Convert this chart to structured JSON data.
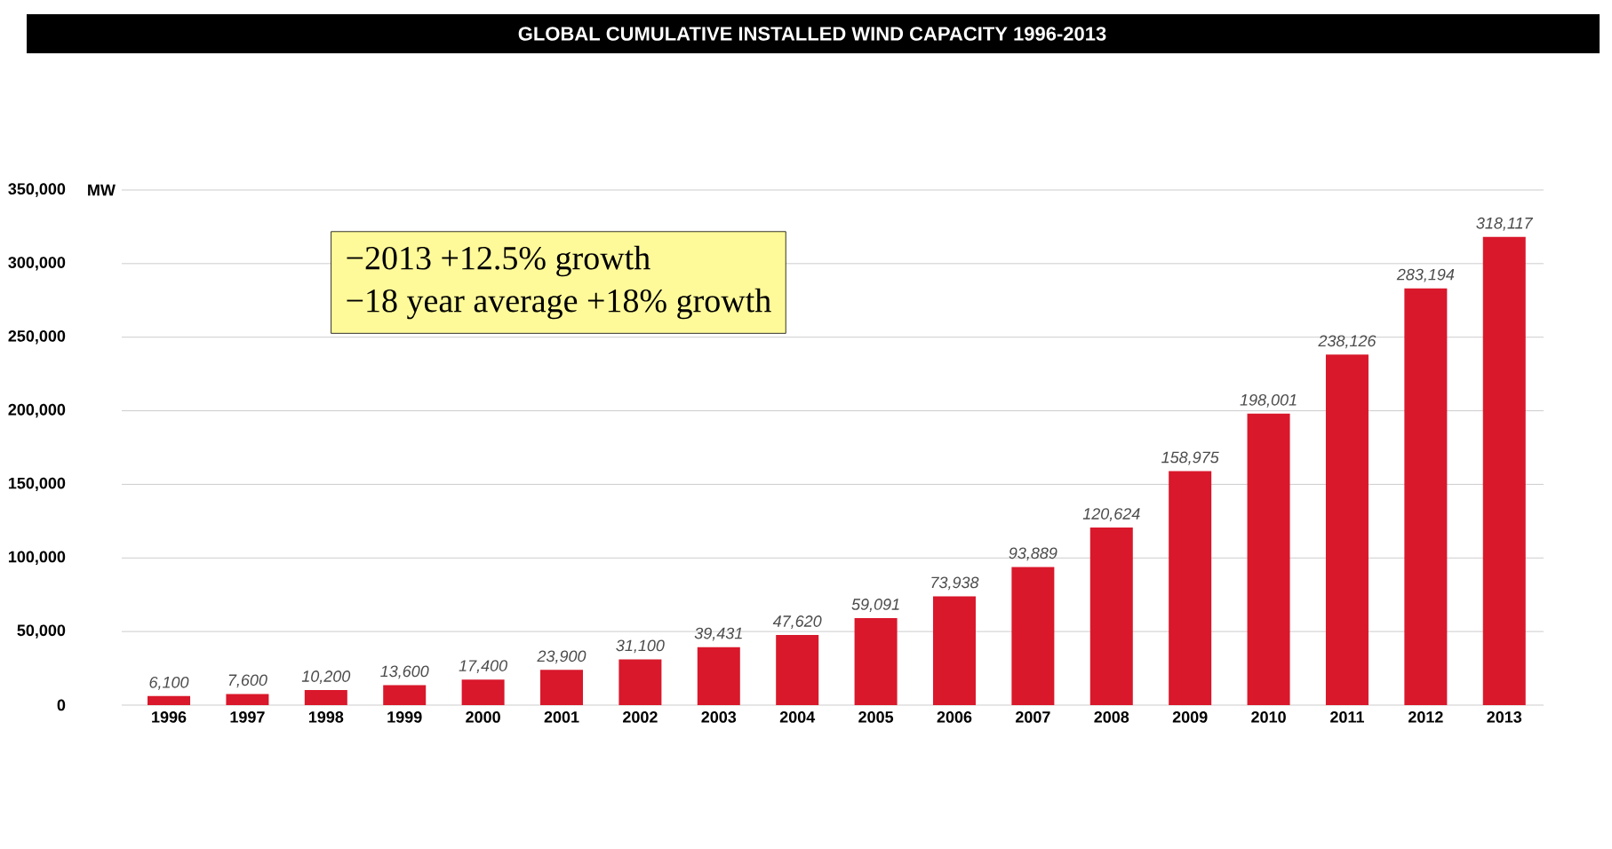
{
  "chart_data": {
    "type": "bar",
    "title": "GLOBAL CUMULATIVE INSTALLED WIND CAPACITY 1996-2013",
    "ylabel": "MW",
    "categories": [
      "1996",
      "1997",
      "1998",
      "1999",
      "2000",
      "2001",
      "2002",
      "2003",
      "2004",
      "2005",
      "2006",
      "2007",
      "2008",
      "2009",
      "2010",
      "2011",
      "2012",
      "2013"
    ],
    "values": [
      6100,
      7600,
      10200,
      13600,
      17400,
      23900,
      31100,
      39431,
      47620,
      59091,
      73938,
      93889,
      120624,
      158975,
      198001,
      238126,
      283194,
      318117
    ],
    "value_labels": [
      "6,100",
      "7,600",
      "10,200",
      "13,600",
      "17,400",
      "23,900",
      "31,100",
      "39,431",
      "47,620",
      "59,091",
      "73,938",
      "93,889",
      "120,624",
      "158,975",
      "198,001",
      "238,126",
      "283,194",
      "318,117"
    ],
    "color": "#d9182b",
    "ylim": [
      0,
      350000
    ],
    "yticks": [
      0,
      {
        "value": 50000,
        "label": "50,000"
      },
      {
        "value": 100000,
        "label": "100,000"
      },
      {
        "value": 150000,
        "label": "150,000"
      },
      {
        "value": 200000,
        "label": "200,000"
      },
      {
        "value": 250000,
        "label": "250,000"
      },
      {
        "value": 300000,
        "label": "300,000"
      },
      {
        "value": 350000,
        "label": "350,000"
      }
    ],
    "grid": "y",
    "annotations": [
      "−2013   +12.5% growth",
      "−18 year average +18% growth"
    ]
  }
}
